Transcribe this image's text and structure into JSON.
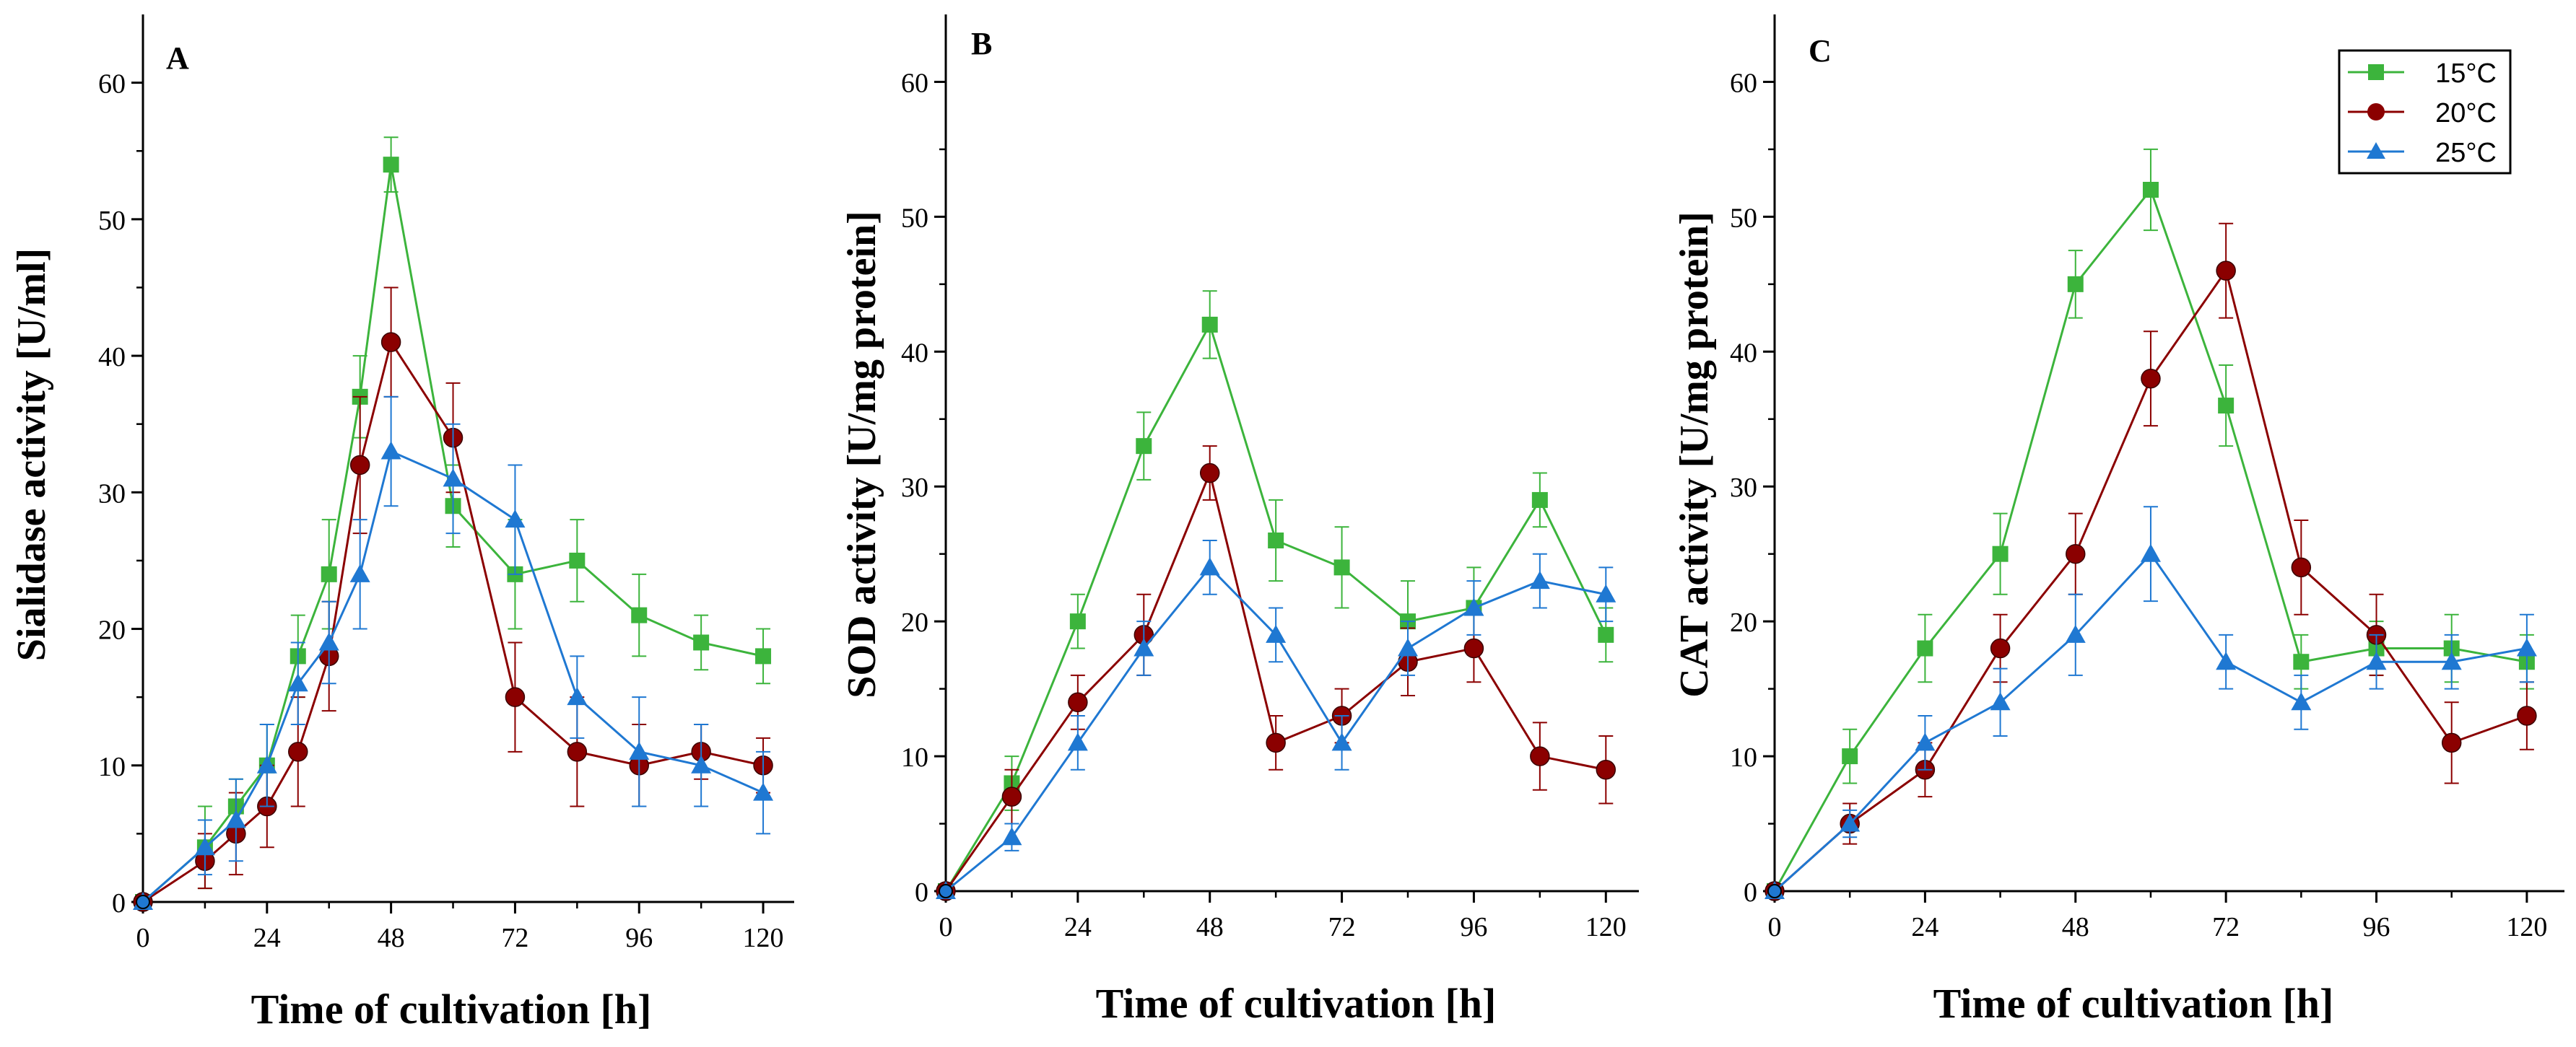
{
  "colors": {
    "15C": "#3cb43c",
    "20C": "#8b0000",
    "25C": "#1f78d2",
    "axis": "#000000"
  },
  "legend": [
    "15°C",
    "20°C",
    "25°C"
  ],
  "chart_data": [
    {
      "type": "line",
      "panel_label": "A",
      "title": "",
      "xlabel": "Time of cultivation [h]",
      "ylabel": "Sialidase activity [U/ml]",
      "xlim": [
        0,
        126
      ],
      "ylim": [
        0,
        65
      ],
      "xticks": [
        0,
        24,
        48,
        72,
        96,
        120
      ],
      "yticks": [
        0,
        10,
        20,
        30,
        40,
        50,
        60
      ],
      "series": [
        {
          "name": "15°C",
          "marker": "square",
          "x": [
            0,
            12,
            18,
            24,
            30,
            36,
            42,
            48,
            60,
            72,
            84,
            96,
            108,
            120
          ],
          "y": [
            0,
            4,
            7,
            10,
            18,
            24,
            37,
            54,
            29,
            24,
            25,
            21,
            19,
            18
          ],
          "err": [
            0,
            3,
            2,
            3,
            3,
            4,
            3,
            2,
            3,
            4,
            3,
            3,
            2,
            2
          ]
        },
        {
          "name": "20°C",
          "marker": "circle",
          "x": [
            0,
            12,
            18,
            24,
            30,
            36,
            42,
            48,
            60,
            72,
            84,
            96,
            108,
            120
          ],
          "y": [
            0,
            3,
            5,
            7,
            11,
            18,
            32,
            41,
            34,
            15,
            11,
            10,
            11,
            10
          ],
          "err": [
            0,
            2,
            3,
            3,
            4,
            4,
            5,
            4,
            4,
            4,
            4,
            3,
            2,
            2
          ]
        },
        {
          "name": "25°C",
          "marker": "triangle",
          "x": [
            0,
            12,
            18,
            24,
            30,
            36,
            42,
            48,
            60,
            72,
            84,
            96,
            108,
            120
          ],
          "y": [
            0,
            4,
            6,
            10,
            16,
            19,
            24,
            33,
            31,
            28,
            15,
            11,
            10,
            8
          ],
          "err": [
            0,
            2,
            3,
            3,
            3,
            3,
            4,
            4,
            4,
            4,
            3,
            4,
            3,
            3
          ]
        }
      ]
    },
    {
      "type": "line",
      "panel_label": "B",
      "title": "",
      "xlabel": "Time of cultivation [h]",
      "ylabel": "SOD activity [U/mg protein]",
      "xlim": [
        0,
        126
      ],
      "ylim": [
        0,
        65
      ],
      "xticks": [
        0,
        24,
        48,
        72,
        96,
        120
      ],
      "yticks": [
        0,
        10,
        20,
        30,
        40,
        50,
        60
      ],
      "series": [
        {
          "name": "15°C",
          "marker": "square",
          "x": [
            0,
            12,
            24,
            36,
            48,
            60,
            72,
            84,
            96,
            108,
            120
          ],
          "y": [
            0,
            8,
            20,
            33,
            42,
            26,
            24,
            20,
            21,
            29,
            19
          ],
          "err": [
            0,
            2,
            2,
            2.5,
            2.5,
            3,
            3,
            3,
            3,
            2,
            2
          ]
        },
        {
          "name": "20°C",
          "marker": "circle",
          "x": [
            0,
            12,
            24,
            36,
            48,
            60,
            72,
            84,
            96,
            108,
            120
          ],
          "y": [
            0,
            7,
            14,
            19,
            31,
            11,
            13,
            17,
            18,
            10,
            9
          ],
          "err": [
            0,
            2,
            2,
            3,
            2,
            2,
            2,
            2.5,
            2.5,
            2.5,
            2.5
          ]
        },
        {
          "name": "25°C",
          "marker": "triangle",
          "x": [
            0,
            12,
            24,
            36,
            48,
            60,
            72,
            84,
            96,
            108,
            120
          ],
          "y": [
            0,
            4,
            11,
            18,
            24,
            19,
            11,
            18,
            21,
            23,
            22
          ],
          "err": [
            0,
            1,
            2,
            2,
            2,
            2,
            2,
            2,
            2,
            2,
            2
          ]
        }
      ]
    },
    {
      "type": "line",
      "panel_label": "C",
      "title": "",
      "xlabel": "Time of cultivation [h]",
      "ylabel": "CAT activity [U/mg protein]",
      "xlim": [
        0,
        126
      ],
      "ylim": [
        0,
        65
      ],
      "xticks": [
        0,
        24,
        48,
        72,
        96,
        120
      ],
      "yticks": [
        0,
        10,
        20,
        30,
        40,
        50,
        60
      ],
      "series": [
        {
          "name": "15°C",
          "marker": "square",
          "x": [
            0,
            12,
            24,
            36,
            48,
            60,
            72,
            84,
            96,
            108,
            120
          ],
          "y": [
            0,
            10,
            18,
            25,
            45,
            52,
            36,
            17,
            18,
            18,
            17
          ],
          "err": [
            0,
            2,
            2.5,
            3,
            2.5,
            3,
            3,
            2,
            2,
            2.5,
            2
          ]
        },
        {
          "name": "20°C",
          "marker": "circle",
          "x": [
            0,
            12,
            24,
            36,
            48,
            60,
            72,
            84,
            96,
            108,
            120
          ],
          "y": [
            0,
            5,
            9,
            18,
            25,
            38,
            46,
            24,
            19,
            11,
            13
          ],
          "err": [
            0,
            1.5,
            2,
            2.5,
            3,
            3.5,
            3.5,
            3.5,
            3,
            3,
            2.5
          ]
        },
        {
          "name": "25°C",
          "marker": "triangle",
          "x": [
            0,
            12,
            24,
            36,
            48,
            60,
            72,
            84,
            96,
            108,
            120
          ],
          "y": [
            0,
            5,
            11,
            14,
            19,
            25,
            17,
            14,
            17,
            17,
            18
          ],
          "err": [
            0,
            1,
            2,
            2.5,
            3,
            3.5,
            2,
            2,
            2,
            2,
            2.5
          ]
        }
      ]
    }
  ]
}
